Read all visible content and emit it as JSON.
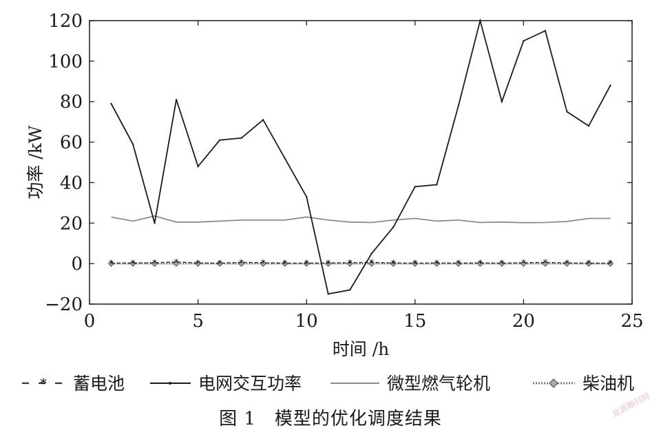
{
  "chart_data": {
    "type": "line",
    "xlabel": "时间 /h",
    "ylabel": "功率 /kW",
    "xlim": [
      0,
      25
    ],
    "ylim": [
      -20,
      120
    ],
    "xticks": [
      0,
      5,
      10,
      15,
      20,
      25
    ],
    "yticks": [
      -20,
      0,
      20,
      40,
      60,
      80,
      100,
      120
    ],
    "grid": false,
    "legend_position": "bottom",
    "x": [
      1,
      2,
      3,
      4,
      5,
      6,
      7,
      8,
      9,
      10,
      11,
      12,
      13,
      14,
      15,
      16,
      17,
      18,
      19,
      20,
      21,
      22,
      23,
      24
    ],
    "series": [
      {
        "name": "蓄电池",
        "color": "#333333",
        "style": "dash-star",
        "values": [
          0.2,
          0.3,
          0.4,
          0.8,
          0.3,
          0.2,
          0.6,
          0.4,
          0.2,
          0.2,
          0.3,
          0.4,
          0.6,
          0.3,
          0.2,
          0.3,
          0.2,
          0.3,
          0.2,
          0.4,
          0.6,
          0.3,
          0.2,
          0.2
        ]
      },
      {
        "name": "电网交互功率",
        "color": "#1a1a1a",
        "style": "solid-dot",
        "values": [
          79,
          59,
          20,
          81,
          48,
          61,
          62,
          71,
          52,
          33,
          -15,
          -13,
          5,
          18,
          38,
          39,
          78,
          120,
          80,
          110,
          115,
          75,
          68,
          88
        ]
      },
      {
        "name": "微型燃气轮机",
        "color": "#8c8c8c",
        "style": "solid",
        "values": [
          23,
          21,
          23.5,
          20.5,
          20.5,
          21,
          21.5,
          21.5,
          21.5,
          23,
          21.5,
          20.5,
          20.3,
          21.5,
          22.3,
          21,
          21.5,
          20.3,
          20.5,
          20.2,
          20.3,
          20.8,
          22.3,
          22.3
        ]
      },
      {
        "name": "柴油机",
        "color": "#777777",
        "style": "dotted-diamond",
        "values": [
          0,
          0,
          0,
          0,
          0,
          0,
          0,
          0,
          0,
          0,
          0,
          0,
          0,
          0,
          0,
          0,
          0,
          0,
          0,
          0,
          0,
          0,
          0,
          0
        ]
      }
    ]
  },
  "caption": "图 1　模型的优化调度结果",
  "watermark": "龙源期刊网"
}
